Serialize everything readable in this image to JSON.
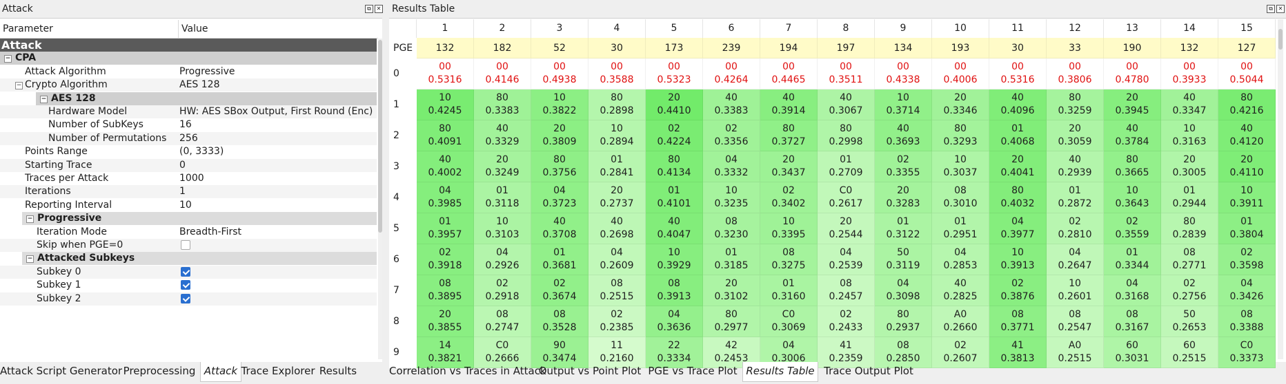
{
  "left_panel": {
    "title": "Attack",
    "header": {
      "param": "Parameter",
      "value": "Value"
    },
    "rows": [
      {
        "label": "Attack",
        "value": "",
        "kind": "group-dark",
        "indent": 0
      },
      {
        "label": "CPA",
        "value": "",
        "kind": "group-mid",
        "indent": 1,
        "toggle": "−"
      },
      {
        "label": "Attack Algorithm",
        "value": "Progressive",
        "kind": "item",
        "indent": 2
      },
      {
        "label": "Crypto Algorithm",
        "value": "AES 128",
        "kind": "item",
        "indent": 2,
        "toggle": "−"
      },
      {
        "label": "AES 128",
        "value": "",
        "kind": "group-mid",
        "indent": 3,
        "toggle": "−"
      },
      {
        "label": "Hardware Model",
        "value": "HW: AES SBox Output, First Round (Enc)",
        "kind": "item",
        "indent": 4
      },
      {
        "label": "Number of SubKeys",
        "value": "16",
        "kind": "item",
        "indent": 4
      },
      {
        "label": "Number of Permutations",
        "value": "256",
        "kind": "item",
        "indent": 4
      },
      {
        "label": "Points Range",
        "value": "(0, 3333)",
        "kind": "item",
        "indent": 2
      },
      {
        "label": "Starting Trace",
        "value": "0",
        "kind": "item",
        "indent": 2
      },
      {
        "label": "Traces per Attack",
        "value": "1000",
        "kind": "item",
        "indent": 2
      },
      {
        "label": "Iterations",
        "value": "1",
        "kind": "item",
        "indent": 2
      },
      {
        "label": "Reporting Interval",
        "value": "10",
        "kind": "item",
        "indent": 2
      },
      {
        "label": "Progressive",
        "value": "",
        "kind": "group-light",
        "indent": 2,
        "toggle": "−"
      },
      {
        "label": "Iteration Mode",
        "value": "Breadth-First",
        "kind": "item",
        "indent": 3
      },
      {
        "label": "Skip when PGE=0",
        "value": "",
        "kind": "check",
        "checked": false,
        "indent": 3
      },
      {
        "label": "Attacked Subkeys",
        "value": "",
        "kind": "group-light",
        "indent": 2,
        "toggle": "−"
      },
      {
        "label": "Subkey 0",
        "value": "",
        "kind": "check",
        "checked": true,
        "indent": 3
      },
      {
        "label": "Subkey 1",
        "value": "",
        "kind": "check",
        "checked": true,
        "indent": 3
      },
      {
        "label": "Subkey 2",
        "value": "",
        "kind": "check",
        "checked": true,
        "indent": 3
      }
    ],
    "tabs": [
      "Attack Script Generator",
      "Preprocessing",
      "Attack",
      "Trace Explorer",
      "Results"
    ],
    "active_tab": "Attack"
  },
  "right_panel": {
    "title": "Results Table",
    "pge_label": "PGE",
    "columns": [
      "1",
      "2",
      "3",
      "4",
      "5",
      "6",
      "7",
      "8",
      "9",
      "10",
      "11",
      "12",
      "13",
      "14",
      "15"
    ],
    "pge": [
      "132",
      "182",
      "52",
      "30",
      "173",
      "239",
      "194",
      "197",
      "134",
      "193",
      "30",
      "33",
      "190",
      "132",
      "127"
    ],
    "rows": [
      {
        "rank": "0",
        "bytes": [
          "00",
          "00",
          "00",
          "00",
          "00",
          "00",
          "00",
          "00",
          "00",
          "00",
          "00",
          "00",
          "00",
          "00",
          "00"
        ],
        "corr": [
          "0.5316",
          "0.4146",
          "0.4938",
          "0.3588",
          "0.5323",
          "0.4264",
          "0.4465",
          "0.3511",
          "0.4338",
          "0.4006",
          "0.5316",
          "0.3806",
          "0.4780",
          "0.3933",
          "0.5044"
        ]
      },
      {
        "rank": "1",
        "bytes": [
          "10",
          "80",
          "10",
          "80",
          "20",
          "40",
          "40",
          "40",
          "10",
          "20",
          "40",
          "80",
          "20",
          "40",
          "80"
        ],
        "corr": [
          "0.4245",
          "0.3383",
          "0.3822",
          "0.2898",
          "0.4410",
          "0.3383",
          "0.3914",
          "0.3067",
          "0.3714",
          "0.3346",
          "0.4096",
          "0.3259",
          "0.3945",
          "0.3347",
          "0.4216"
        ]
      },
      {
        "rank": "2",
        "bytes": [
          "80",
          "40",
          "20",
          "10",
          "02",
          "02",
          "80",
          "80",
          "40",
          "80",
          "01",
          "20",
          "40",
          "10",
          "40"
        ],
        "corr": [
          "0.4091",
          "0.3329",
          "0.3809",
          "0.2894",
          "0.4224",
          "0.3356",
          "0.3727",
          "0.2998",
          "0.3693",
          "0.3293",
          "0.4068",
          "0.3059",
          "0.3784",
          "0.3163",
          "0.4120"
        ]
      },
      {
        "rank": "3",
        "bytes": [
          "40",
          "20",
          "80",
          "01",
          "80",
          "04",
          "20",
          "01",
          "02",
          "10",
          "20",
          "40",
          "80",
          "20",
          "20"
        ],
        "corr": [
          "0.4002",
          "0.3249",
          "0.3756",
          "0.2841",
          "0.4134",
          "0.3332",
          "0.3437",
          "0.2709",
          "0.3355",
          "0.3037",
          "0.4041",
          "0.2939",
          "0.3665",
          "0.3005",
          "0.4110"
        ]
      },
      {
        "rank": "4",
        "bytes": [
          "04",
          "01",
          "04",
          "20",
          "01",
          "10",
          "02",
          "C0",
          "20",
          "08",
          "80",
          "01",
          "10",
          "01",
          "10"
        ],
        "corr": [
          "0.3985",
          "0.3118",
          "0.3723",
          "0.2737",
          "0.4101",
          "0.3235",
          "0.3402",
          "0.2617",
          "0.3283",
          "0.3010",
          "0.4032",
          "0.2872",
          "0.3643",
          "0.2944",
          "0.3911"
        ]
      },
      {
        "rank": "5",
        "bytes": [
          "01",
          "10",
          "40",
          "40",
          "40",
          "08",
          "10",
          "20",
          "01",
          "01",
          "04",
          "02",
          "02",
          "80",
          "01"
        ],
        "corr": [
          "0.3957",
          "0.3103",
          "0.3708",
          "0.2698",
          "0.4047",
          "0.3230",
          "0.3395",
          "0.2544",
          "0.3122",
          "0.2951",
          "0.3977",
          "0.2810",
          "0.3559",
          "0.2839",
          "0.3804"
        ]
      },
      {
        "rank": "6",
        "bytes": [
          "02",
          "04",
          "01",
          "04",
          "10",
          "01",
          "08",
          "04",
          "50",
          "04",
          "10",
          "04",
          "01",
          "08",
          "02"
        ],
        "corr": [
          "0.3918",
          "0.2926",
          "0.3681",
          "0.2609",
          "0.3929",
          "0.3185",
          "0.3275",
          "0.2539",
          "0.3119",
          "0.2853",
          "0.3913",
          "0.2647",
          "0.3344",
          "0.2771",
          "0.3598"
        ]
      },
      {
        "rank": "7",
        "bytes": [
          "08",
          "02",
          "02",
          "08",
          "08",
          "20",
          "01",
          "08",
          "04",
          "40",
          "02",
          "10",
          "04",
          "02",
          "04"
        ],
        "corr": [
          "0.3895",
          "0.2918",
          "0.3674",
          "0.2515",
          "0.3913",
          "0.3102",
          "0.3160",
          "0.2457",
          "0.3098",
          "0.2825",
          "0.3876",
          "0.2601",
          "0.3168",
          "0.2756",
          "0.3426"
        ]
      },
      {
        "rank": "8",
        "bytes": [
          "20",
          "08",
          "08",
          "02",
          "04",
          "80",
          "C0",
          "02",
          "80",
          "A0",
          "08",
          "08",
          "08",
          "50",
          "08"
        ],
        "corr": [
          "0.3855",
          "0.2747",
          "0.3528",
          "0.2385",
          "0.3636",
          "0.2977",
          "0.3069",
          "0.2433",
          "0.2937",
          "0.2660",
          "0.3771",
          "0.2547",
          "0.3167",
          "0.2653",
          "0.3388"
        ]
      },
      {
        "rank": "9",
        "bytes": [
          "14",
          "C0",
          "90",
          "11",
          "22",
          "42",
          "04",
          "41",
          "08",
          "02",
          "41",
          "A0",
          "60",
          "60",
          "C0"
        ],
        "corr": [
          "0.3821",
          "0.2666",
          "0.3474",
          "0.2160",
          "0.3334",
          "0.2453",
          "0.3006",
          "0.2359",
          "0.2850",
          "0.2607",
          "0.3813",
          "0.2515",
          "0.3031",
          "0.2515",
          "0.3373"
        ]
      }
    ],
    "tabs": [
      "Correlation vs Traces in Attack",
      "Output vs Point Plot",
      "PGE vs Trace Plot",
      "Results Table",
      "Trace Output Plot"
    ],
    "active_tab": "Results Table"
  },
  "colors": {
    "pge_row": "#fffbc8",
    "rank0_text": "#e01010",
    "checkbox": "#2a6fd0",
    "group_dark": "#5a5a5a"
  },
  "icons": [
    "float-icon",
    "close-icon"
  ]
}
